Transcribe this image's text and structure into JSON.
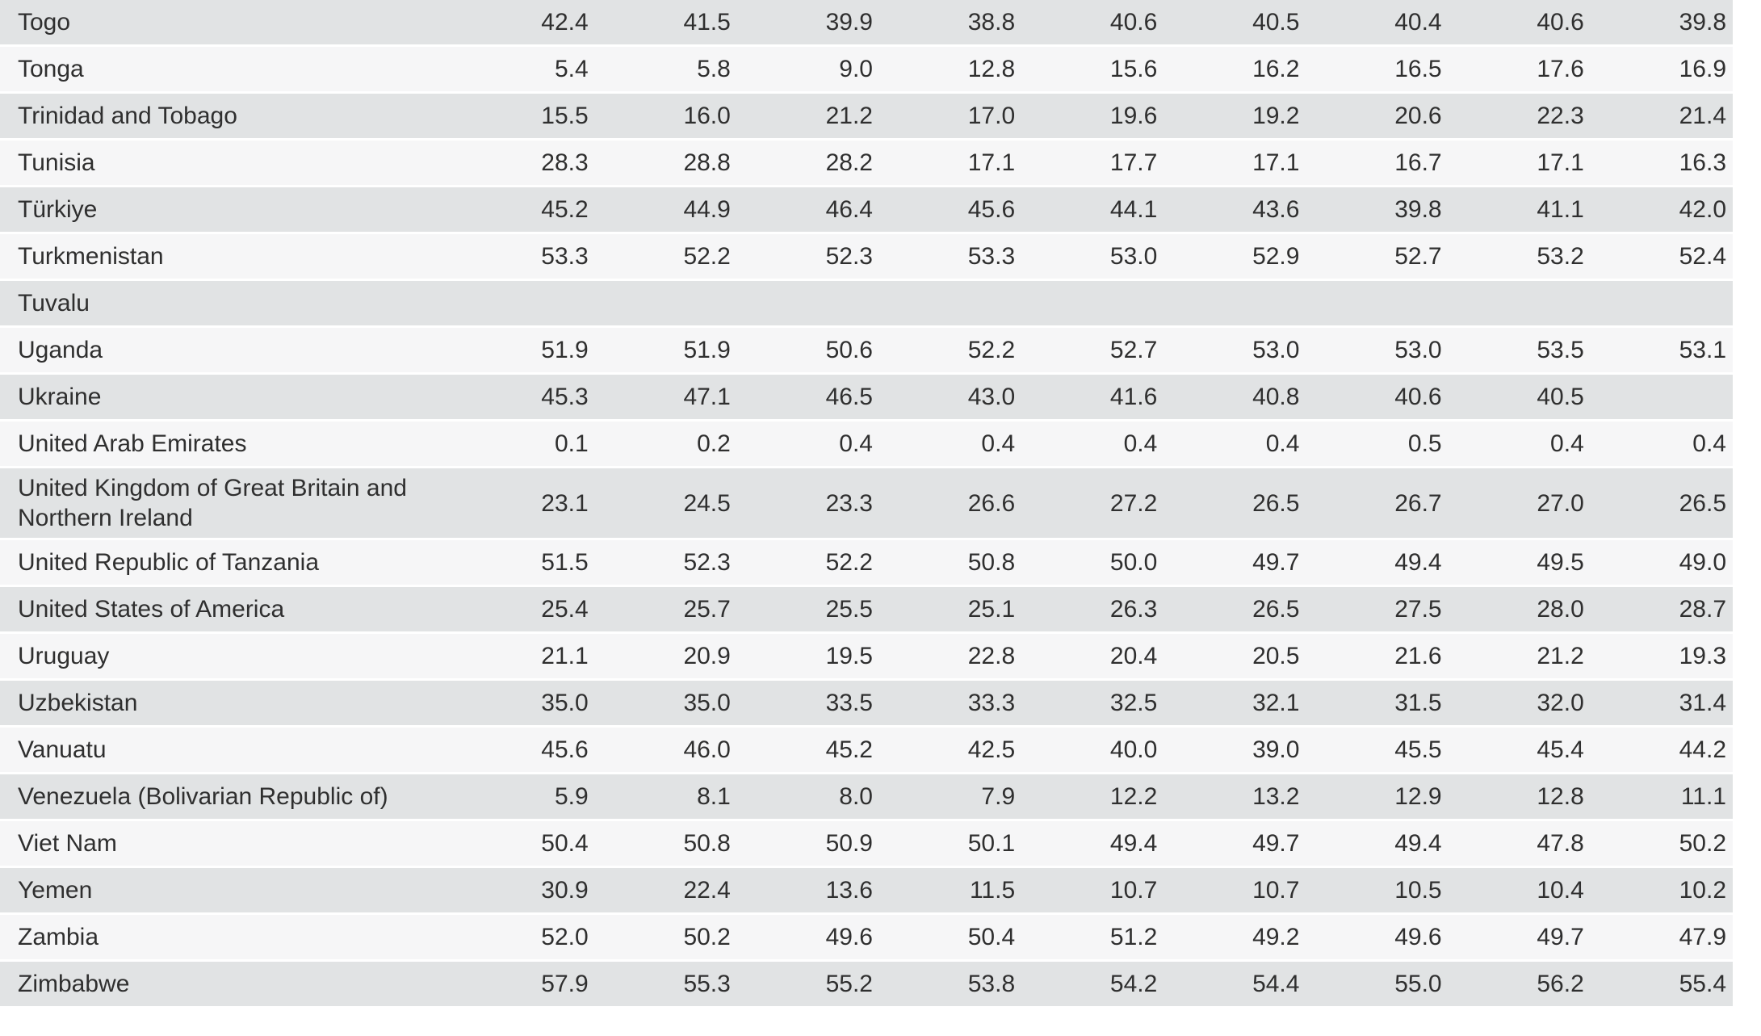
{
  "page": {
    "background": "#ffffff"
  },
  "table": {
    "description": "country-statistics-table",
    "row_stripe_color": "#e1e3e4",
    "row_alt_color": "#f6f6f7",
    "separator_color": "#ffffff",
    "text_color": "#2f2f2f",
    "value_columns_count": 9,
    "rows": [
      {
        "country": "Togo",
        "values": [
          "42.4",
          "41.5",
          "39.9",
          "38.8",
          "40.6",
          "40.5",
          "40.4",
          "40.6",
          "39.8"
        ]
      },
      {
        "country": "Tonga",
        "values": [
          "5.4",
          "5.8",
          "9.0",
          "12.8",
          "15.6",
          "16.2",
          "16.5",
          "17.6",
          "16.9"
        ]
      },
      {
        "country": "Trinidad and Tobago",
        "values": [
          "15.5",
          "16.0",
          "21.2",
          "17.0",
          "19.6",
          "19.2",
          "20.6",
          "22.3",
          "21.4"
        ]
      },
      {
        "country": "Tunisia",
        "values": [
          "28.3",
          "28.8",
          "28.2",
          "17.1",
          "17.7",
          "17.1",
          "16.7",
          "17.1",
          "16.3"
        ]
      },
      {
        "country": "Türkiye",
        "values": [
          "45.2",
          "44.9",
          "46.4",
          "45.6",
          "44.1",
          "43.6",
          "39.8",
          "41.1",
          "42.0"
        ]
      },
      {
        "country": "Turkmenistan",
        "values": [
          "53.3",
          "52.2",
          "52.3",
          "53.3",
          "53.0",
          "52.9",
          "52.7",
          "53.2",
          "52.4"
        ]
      },
      {
        "country": "Tuvalu",
        "values": [
          "",
          "",
          "",
          "",
          "",
          "",
          "",
          "",
          ""
        ]
      },
      {
        "country": "Uganda",
        "values": [
          "51.9",
          "51.9",
          "50.6",
          "52.2",
          "52.7",
          "53.0",
          "53.0",
          "53.5",
          "53.1"
        ]
      },
      {
        "country": "Ukraine",
        "values": [
          "45.3",
          "47.1",
          "46.5",
          "43.0",
          "41.6",
          "40.8",
          "40.6",
          "40.5",
          ""
        ]
      },
      {
        "country": "United Arab Emirates",
        "values": [
          "0.1",
          "0.2",
          "0.4",
          "0.4",
          "0.4",
          "0.4",
          "0.5",
          "0.4",
          "0.4"
        ]
      },
      {
        "country": "United Kingdom of Great Britain and Northern Ireland",
        "values": [
          "23.1",
          "24.5",
          "23.3",
          "26.6",
          "27.2",
          "26.5",
          "26.7",
          "27.0",
          "26.5"
        ]
      },
      {
        "country": "United Republic of Tanzania",
        "values": [
          "51.5",
          "52.3",
          "52.2",
          "50.8",
          "50.0",
          "49.7",
          "49.4",
          "49.5",
          "49.0"
        ]
      },
      {
        "country": "United States of America",
        "values": [
          "25.4",
          "25.7",
          "25.5",
          "25.1",
          "26.3",
          "26.5",
          "27.5",
          "28.0",
          "28.7"
        ]
      },
      {
        "country": "Uruguay",
        "values": [
          "21.1",
          "20.9",
          "19.5",
          "22.8",
          "20.4",
          "20.5",
          "21.6",
          "21.2",
          "19.3"
        ]
      },
      {
        "country": "Uzbekistan",
        "values": [
          "35.0",
          "35.0",
          "33.5",
          "33.3",
          "32.5",
          "32.1",
          "31.5",
          "32.0",
          "31.4"
        ]
      },
      {
        "country": "Vanuatu",
        "values": [
          "45.6",
          "46.0",
          "45.2",
          "42.5",
          "40.0",
          "39.0",
          "45.5",
          "45.4",
          "44.2"
        ]
      },
      {
        "country": "Venezuela (Bolivarian Republic of)",
        "values": [
          "5.9",
          "8.1",
          "8.0",
          "7.9",
          "12.2",
          "13.2",
          "12.9",
          "12.8",
          "11.1"
        ]
      },
      {
        "country": "Viet Nam",
        "values": [
          "50.4",
          "50.8",
          "50.9",
          "50.1",
          "49.4",
          "49.7",
          "49.4",
          "47.8",
          "50.2"
        ]
      },
      {
        "country": "Yemen",
        "values": [
          "30.9",
          "22.4",
          "13.6",
          "11.5",
          "10.7",
          "10.7",
          "10.5",
          "10.4",
          "10.2"
        ]
      },
      {
        "country": "Zambia",
        "values": [
          "52.0",
          "50.2",
          "49.6",
          "50.4",
          "51.2",
          "49.2",
          "49.6",
          "49.7",
          "47.9"
        ]
      },
      {
        "country": "Zimbabwe",
        "values": [
          "57.9",
          "55.3",
          "55.2",
          "53.8",
          "54.2",
          "54.4",
          "55.0",
          "56.2",
          "55.4"
        ]
      }
    ]
  }
}
